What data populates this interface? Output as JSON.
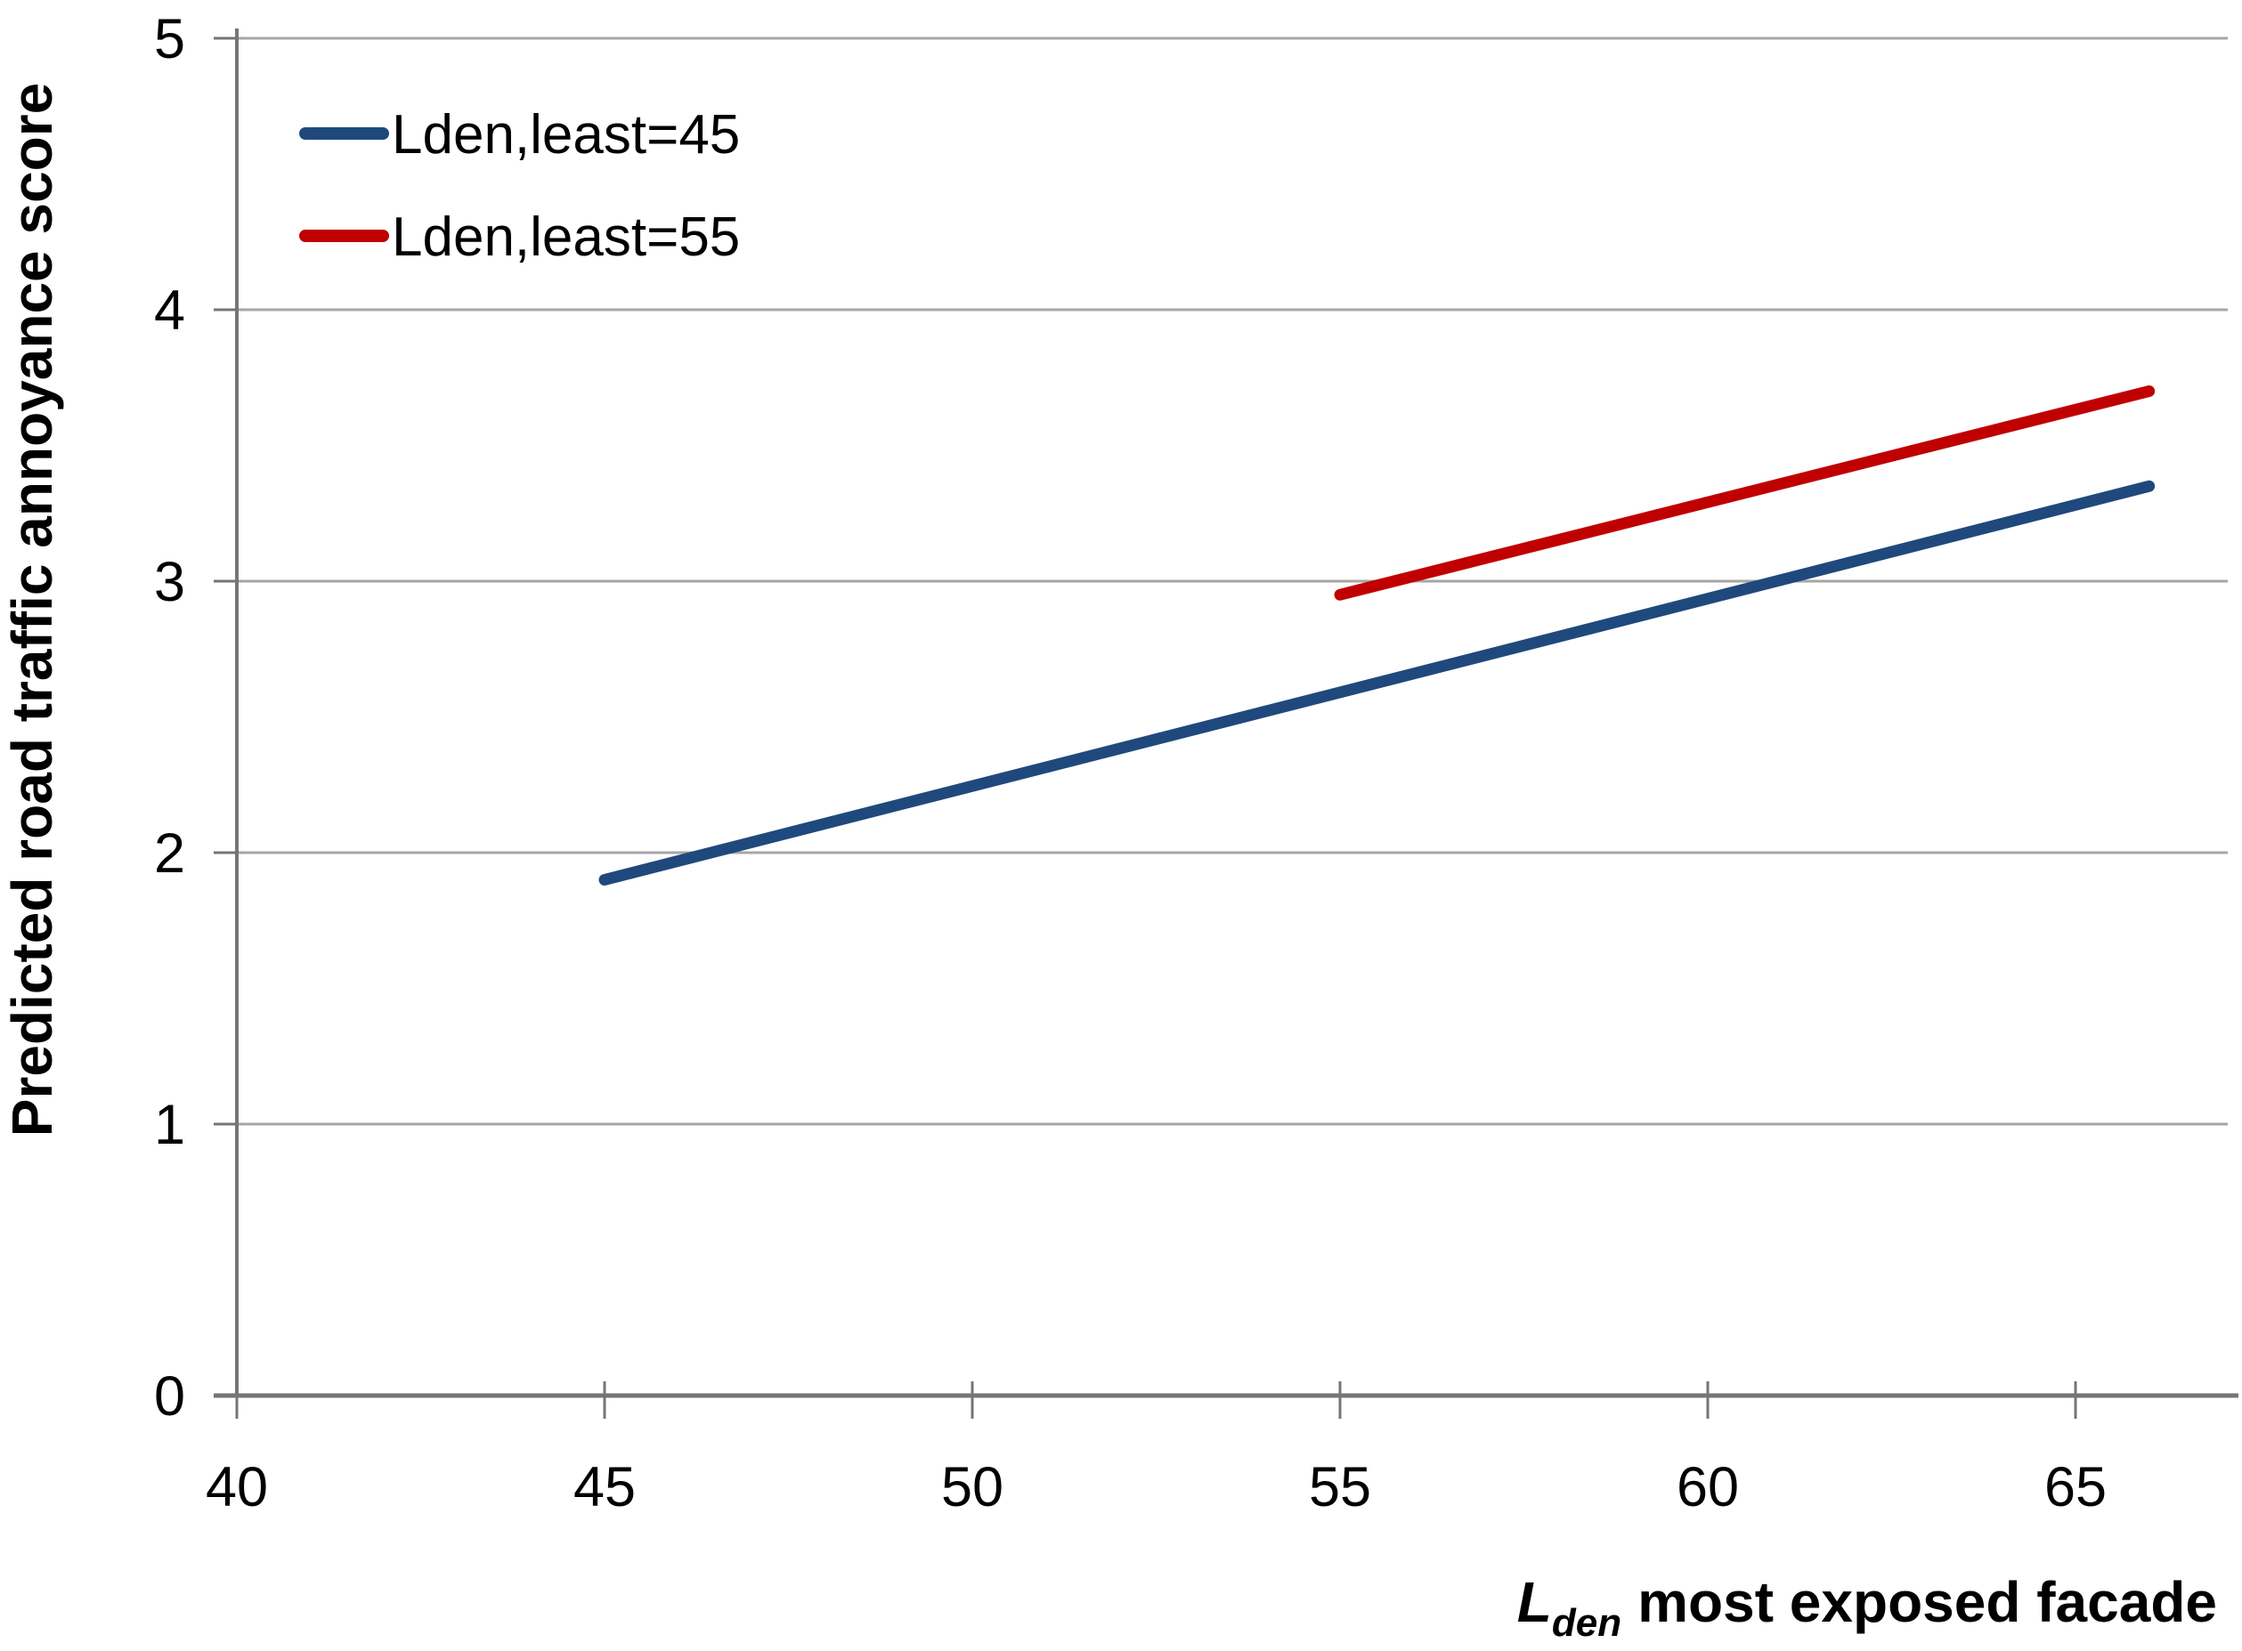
{
  "chart_data": {
    "type": "line",
    "title": "",
    "ylabel": "Predicted road traffic annoyance score",
    "xlabel": {
      "symbol": "L",
      "subscript": "den",
      "rest": "most exposed facade"
    },
    "xlim": [
      40,
      67.07
    ],
    "ylim": [
      0,
      5
    ],
    "x_ticks": [
      40,
      45,
      50,
      55,
      60,
      65
    ],
    "y_ticks": [
      0,
      1,
      2,
      3,
      4,
      5
    ],
    "grid": "horizontal",
    "legend_position": "top-left-inside",
    "series": [
      {
        "name": "Lden,least=45",
        "color": "#1F497D",
        "points": [
          [
            45,
            1.9
          ],
          [
            66,
            3.35
          ]
        ]
      },
      {
        "name": "Lden,least=55",
        "color": "#C00000",
        "points": [
          [
            55,
            2.95
          ],
          [
            66,
            3.7
          ]
        ]
      }
    ],
    "axis_color": "#757575",
    "gridline_color": "#a6a6a6",
    "text_color": "#000000",
    "background": "#ffffff"
  }
}
